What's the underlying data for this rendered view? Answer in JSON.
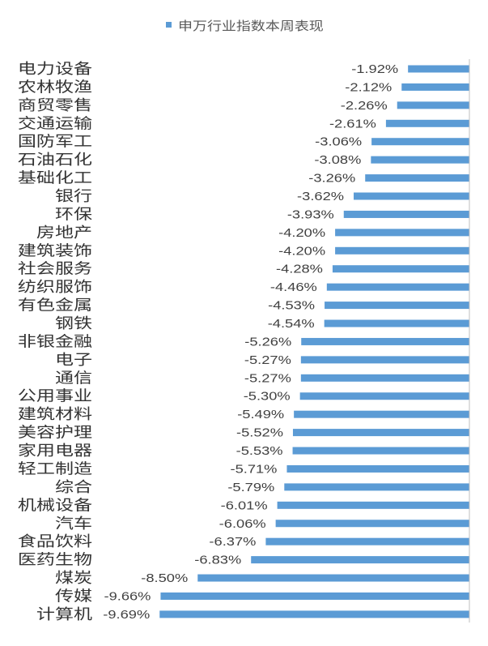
{
  "chart_data": {
    "type": "bar",
    "orientation": "horizontal",
    "legend": "top",
    "grid": false,
    "categories": [
      "电力设备",
      "农林牧渔",
      "商贸零售",
      "交通运输",
      "国防军工",
      "石油石化",
      "基础化工",
      "银行",
      "环保",
      "房地产",
      "建筑装饰",
      "社会服务",
      "纺织服饰",
      "有色金属",
      "钢铁",
      "非银金融",
      "电子",
      "通信",
      "公用事业",
      "建筑材料",
      "美容护理",
      "家用电器",
      "轻工制造",
      "综合",
      "机械设备",
      "汽车",
      "食品饮料",
      "医药生物",
      "煤炭",
      "传媒",
      "计算机"
    ],
    "series": [
      {
        "name": "申万行业指数本周表现",
        "color": "#5B9BD5",
        "values": [
          -1.92,
          -2.12,
          -2.26,
          -2.61,
          -3.06,
          -3.08,
          -3.26,
          -3.62,
          -3.93,
          -4.2,
          -4.2,
          -4.28,
          -4.46,
          -4.53,
          -4.54,
          -5.26,
          -5.27,
          -5.27,
          -5.3,
          -5.49,
          -5.52,
          -5.53,
          -5.71,
          -5.79,
          -6.01,
          -6.06,
          -6.37,
          -6.83,
          -8.5,
          -9.66,
          -9.69
        ]
      }
    ],
    "data_labels": [
      "-1.92%",
      "-2.12%",
      "-2.26%",
      "-2.61%",
      "-3.06%",
      "-3.08%",
      "-3.26%",
      "-3.62%",
      "-3.93%",
      "-4.20%",
      "-4.20%",
      "-4.28%",
      "-4.46%",
      "-4.53%",
      "-4.54%",
      "-5.26%",
      "-5.27%",
      "-5.27%",
      "-5.30%",
      "-5.49%",
      "-5.52%",
      "-5.53%",
      "-5.71%",
      "-5.79%",
      "-6.01%",
      "-6.06%",
      "-6.37%",
      "-6.83%",
      "-8.50%",
      "-9.66%",
      "-9.69%"
    ]
  }
}
